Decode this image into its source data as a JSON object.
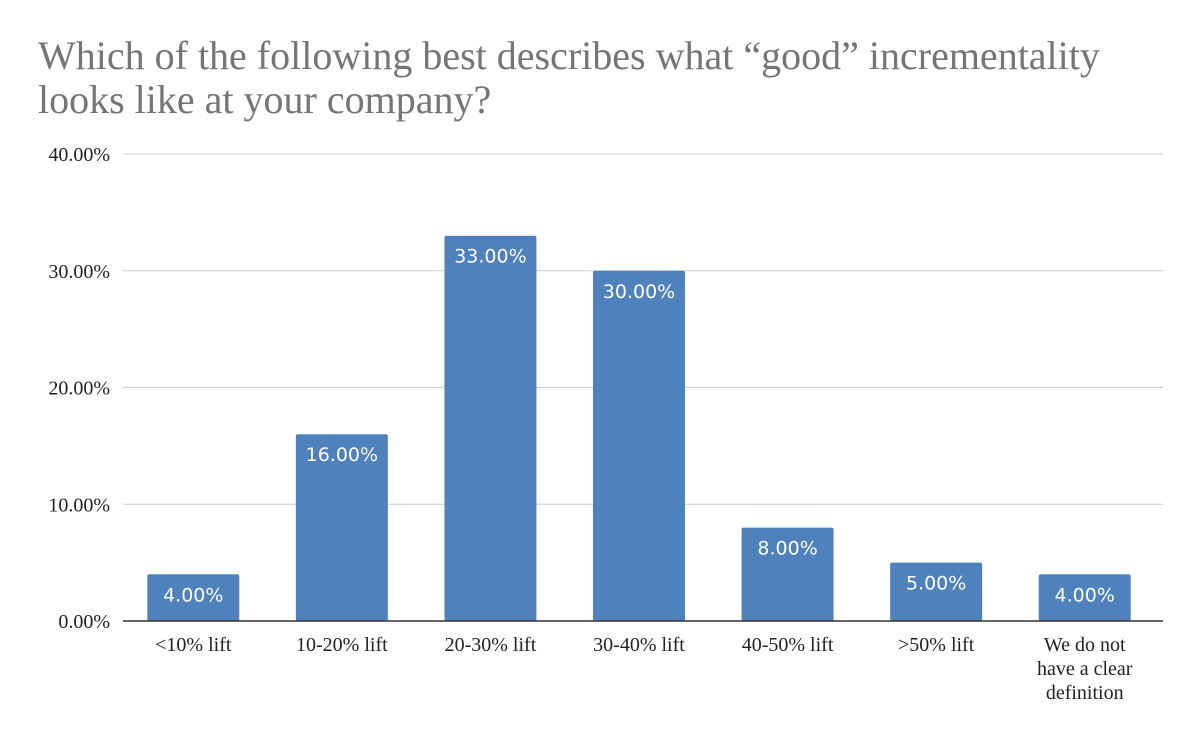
{
  "chart_data": {
    "type": "bar",
    "title_lines": [
      "Which of the following best describes what “good” incrementality",
      "looks like at your company?"
    ],
    "categories": [
      [
        "<10% lift"
      ],
      [
        "10-20% lift"
      ],
      [
        "20-30% lift"
      ],
      [
        "30-40% lift"
      ],
      [
        "40-50% lift"
      ],
      [
        ">50% lift"
      ],
      [
        "We do not",
        "have a clear",
        "definition"
      ]
    ],
    "values": [
      4.0,
      16.0,
      33.0,
      30.0,
      8.0,
      5.0,
      4.0
    ],
    "data_labels": [
      "4.00%",
      "16.00%",
      "33.00%",
      "30.00%",
      "8.00%",
      "5.00%",
      "4.00%"
    ],
    "ylim": [
      0,
      40
    ],
    "yticks": [
      0,
      10,
      20,
      30,
      40
    ],
    "ytick_labels": [
      "0.00%",
      "10.00%",
      "20.00%",
      "30.00%",
      "40.00%"
    ],
    "grid": true,
    "legend": "none",
    "colors": {
      "bar": "#4f81bd",
      "grid": "#cccccc",
      "axis": "#333333",
      "title": "#757575",
      "label": "#222222",
      "data_label": "#ffffff"
    }
  }
}
